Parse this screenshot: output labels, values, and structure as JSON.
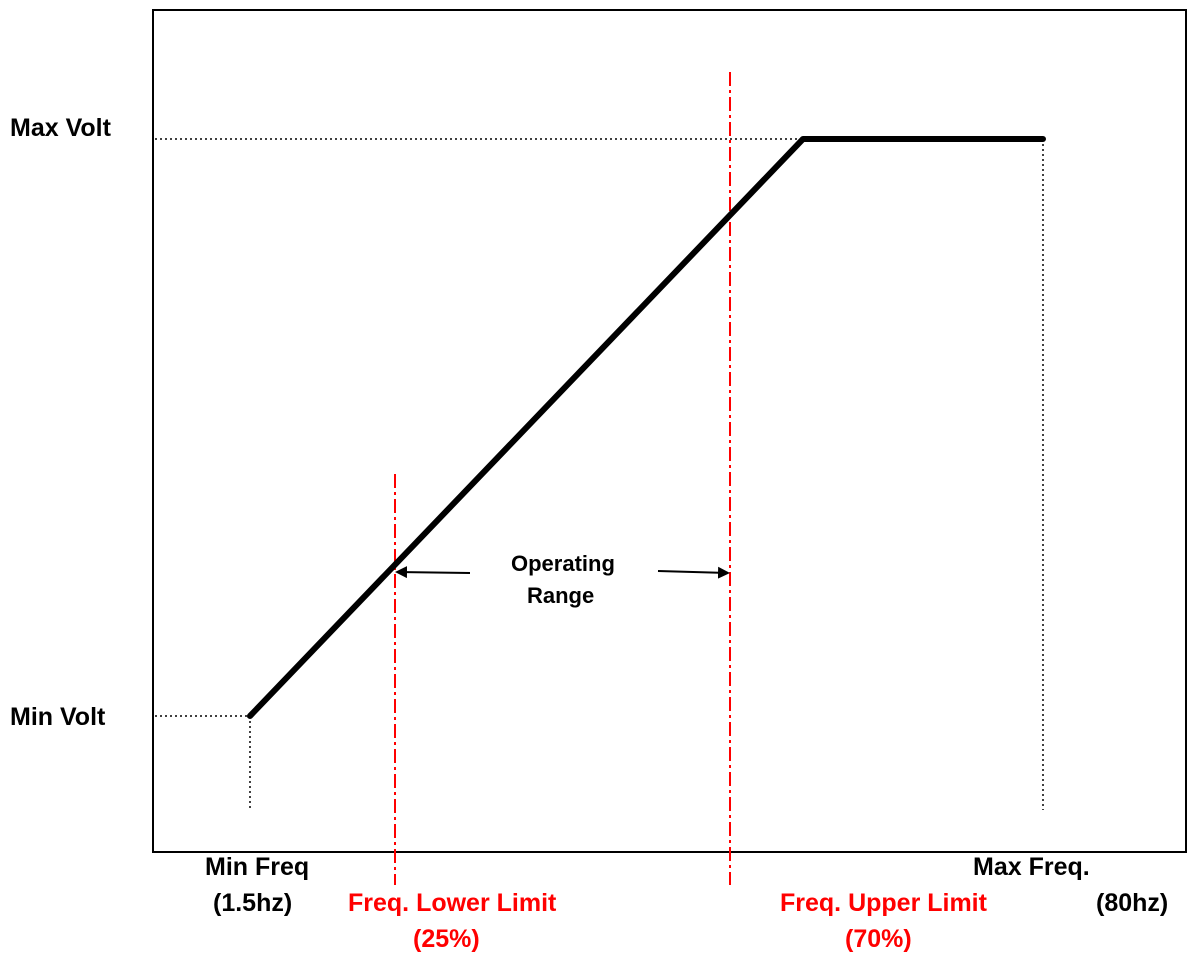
{
  "diagram": {
    "y_axis": {
      "max_label": "Max Volt",
      "min_label": "Min Volt"
    },
    "x_axis": {
      "min_label_line1": "Min Freq",
      "min_label_line2": "(1.5hz)",
      "max_label_line1": "Max Freq.",
      "max_label_line2": "(80hz)"
    },
    "lower_limit": {
      "label_line1": "Freq. Lower Limit",
      "label_line2": "(25%)"
    },
    "upper_limit": {
      "label_line1": "Freq. Upper Limit",
      "label_line2": "(70%)"
    },
    "range": {
      "label_line1": "Operating",
      "label_line2": "Range"
    }
  },
  "colors": {
    "line": "#000000",
    "limits": "#ff0000"
  }
}
